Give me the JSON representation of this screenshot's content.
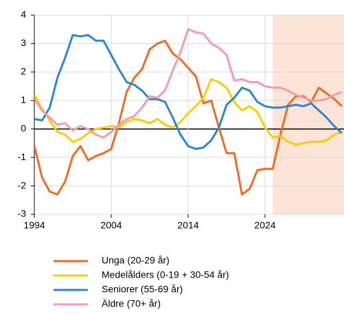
{
  "chart_data": {
    "type": "line",
    "x": [
      1994,
      1995,
      1996,
      1997,
      1998,
      1999,
      2000,
      2001,
      2002,
      2003,
      2004,
      2005,
      2006,
      2007,
      2008,
      2009,
      2010,
      2011,
      2012,
      2013,
      2014,
      2015,
      2016,
      2017,
      2018,
      2019,
      2020,
      2021,
      2022,
      2023,
      2024,
      2025,
      2026,
      2027,
      2028,
      2029,
      2030,
      2031,
      2032,
      2033,
      2034
    ],
    "series": [
      {
        "name": "Unga (20-29 år)",
        "color": "#f26a21",
        "values": [
          -0.6,
          -1.7,
          -2.2,
          -2.3,
          -1.85,
          -0.95,
          -0.6,
          -1.1,
          -0.95,
          -0.85,
          -0.7,
          0.2,
          1.3,
          1.8,
          2.1,
          2.8,
          3.0,
          3.1,
          2.65,
          2.45,
          2.15,
          1.85,
          0.9,
          1.0,
          0.05,
          -0.85,
          -0.85,
          -2.3,
          -2.1,
          -1.45,
          -1.4,
          -1.4,
          -0.2,
          0.85,
          1.15,
          1.15,
          0.95,
          1.45,
          1.25,
          1.05,
          0.8
        ]
      },
      {
        "name": "Medelålders (0-19 + 30-54 år)",
        "color": "#ffcc00",
        "values": [
          1.2,
          0.7,
          0.3,
          -0.1,
          -0.2,
          -0.45,
          -0.35,
          -0.15,
          0.0,
          0.05,
          0.1,
          0.05,
          0.25,
          0.35,
          0.3,
          0.2,
          0.35,
          0.15,
          0.05,
          0.25,
          0.55,
          0.8,
          1.1,
          1.75,
          1.65,
          1.45,
          0.95,
          0.65,
          0.8,
          0.6,
          0.05,
          -0.3,
          -0.25,
          -0.45,
          -0.55,
          -0.5,
          -0.45,
          -0.45,
          -0.4,
          -0.2,
          -0.1
        ]
      },
      {
        "name": "Seniorer (55-69 år)",
        "color": "#2b86d4",
        "values": [
          0.35,
          0.3,
          0.75,
          1.8,
          2.5,
          3.3,
          3.25,
          3.3,
          3.1,
          3.1,
          2.6,
          2.1,
          1.65,
          1.55,
          1.35,
          1.05,
          1.05,
          0.95,
          0.4,
          -0.2,
          -0.6,
          -0.7,
          -0.65,
          -0.4,
          0.05,
          0.85,
          1.1,
          1.45,
          1.35,
          0.95,
          0.8,
          0.75,
          0.75,
          0.8,
          0.85,
          0.8,
          0.9,
          0.65,
          0.4,
          0.1,
          -0.15
        ]
      },
      {
        "name": "Äldre (70+ år)",
        "color": "#f59ab0",
        "values": [
          1.05,
          0.65,
          0.4,
          0.15,
          0.2,
          -0.05,
          0.1,
          0.0,
          -0.2,
          -0.3,
          -0.1,
          0.15,
          0.35,
          0.45,
          0.75,
          1.15,
          1.1,
          1.35,
          2.05,
          2.7,
          3.5,
          3.4,
          3.35,
          3.0,
          2.85,
          2.6,
          1.7,
          1.75,
          1.65,
          1.65,
          1.5,
          1.45,
          1.45,
          1.35,
          1.2,
          1.1,
          1.0,
          1.0,
          1.05,
          1.2,
          1.3
        ]
      }
    ],
    "xlim": [
      1994,
      2034
    ],
    "xticks": [
      1994,
      2004,
      2014,
      2024
    ],
    "ylim": [
      -3,
      4
    ],
    "yticks": [
      -3,
      -2,
      -1,
      0,
      1,
      2,
      3,
      4
    ],
    "grid": true,
    "shaded_region": {
      "from": 2025,
      "color": "#fce4d6"
    },
    "legend": "bottom"
  }
}
